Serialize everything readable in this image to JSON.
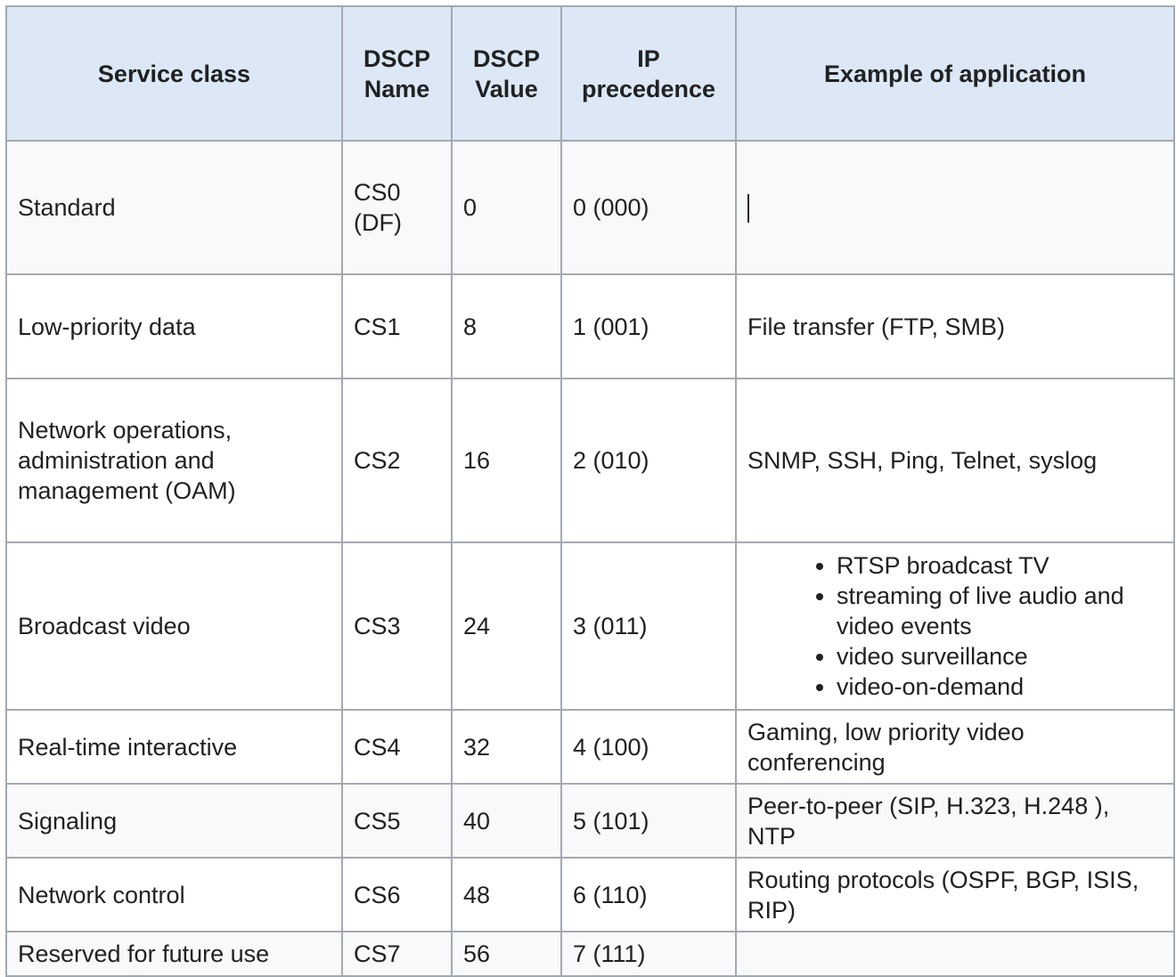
{
  "headers": {
    "service_class": "Service class",
    "dscp_name": "DSCP Name",
    "dscp_value": "DSCP Value",
    "ip_precedence": "IP precedence",
    "example": "Example of application"
  },
  "rows": [
    {
      "service_class": "Standard",
      "dscp_name": "CS0 (DF)",
      "dscp_value": "0",
      "ip_precedence": "0 (000)",
      "example": ""
    },
    {
      "service_class": "Low-priority data",
      "dscp_name": "CS1",
      "dscp_value": "8",
      "ip_precedence": "1 (001)",
      "example": "File transfer (FTP, SMB)"
    },
    {
      "service_class": "Network operations, administration and management (OAM)",
      "dscp_name": "CS2",
      "dscp_value": "16",
      "ip_precedence": "2 (010)",
      "example": "SNMP, SSH, Ping, Telnet, syslog"
    },
    {
      "service_class": "Broadcast video",
      "dscp_name": "CS3",
      "dscp_value": "24",
      "ip_precedence": "3 (011)",
      "example_list": [
        "RTSP broadcast TV",
        "streaming of live audio and video events",
        "video surveillance",
        "video-on-demand"
      ]
    },
    {
      "service_class": "Real-time interactive",
      "dscp_name": "CS4",
      "dscp_value": "32",
      "ip_precedence": "4 (100)",
      "example": "Gaming, low priority video conferencing"
    },
    {
      "service_class": "Signaling",
      "dscp_name": "CS5",
      "dscp_value": "40",
      "ip_precedence": "5 (101)",
      "example": "Peer-to-peer (SIP, H.323, H.248 ), NTP"
    },
    {
      "service_class": "Network control",
      "dscp_name": "CS6",
      "dscp_value": "48",
      "ip_precedence": "6 (110)",
      "example": "Routing protocols (OSPF, BGP, ISIS, RIP)"
    },
    {
      "service_class": "Reserved for future use",
      "dscp_name": "CS7",
      "dscp_value": "56",
      "ip_precedence": "7 (111)",
      "example": ""
    }
  ]
}
